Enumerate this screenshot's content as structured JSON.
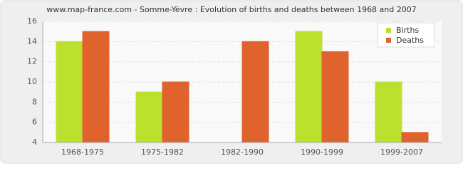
{
  "chart_data": {
    "type": "bar",
    "title": "www.map-france.com - Somme-Yèvre : Evolution of births and deaths between 1968 and 2007",
    "categories": [
      "1968-1975",
      "1975-1982",
      "1982-1990",
      "1990-1999",
      "1999-2007"
    ],
    "series": [
      {
        "name": "Births",
        "color": "#bbe02e",
        "values": [
          14,
          9,
          4,
          15,
          10
        ]
      },
      {
        "name": "Deaths",
        "color": "#e0632e",
        "values": [
          15,
          10,
          14,
          13,
          5
        ]
      }
    ],
    "ylim": [
      4,
      16
    ],
    "yticks": [
      4,
      6,
      8,
      10,
      12,
      14,
      16
    ],
    "grid": true,
    "legend": "top-right"
  }
}
